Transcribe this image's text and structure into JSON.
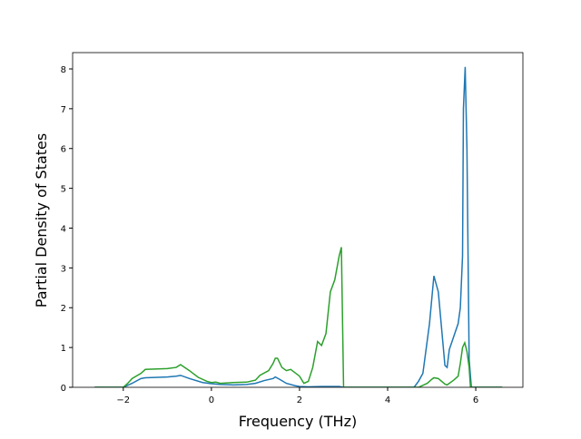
{
  "chart_data": {
    "type": "line",
    "xlabel": "Frequency (THz)",
    "ylabel": "Partial Density of States",
    "xlim": [
      -3.15,
      7.07
    ],
    "ylim": [
      0,
      8.41
    ],
    "xticks": [
      {
        "value": -2,
        "label": "−2"
      },
      0,
      2,
      4,
      6
    ],
    "yticks": [
      0,
      1,
      2,
      3,
      4,
      5,
      6,
      7,
      8
    ],
    "series": [
      {
        "color": "#1f77b4",
        "x": [
          -2.65,
          -2,
          -1.8,
          -1.6,
          -1.5,
          -1,
          -0.8,
          -0.7,
          -0.5,
          -0.2,
          0,
          0.2,
          0.5,
          0.8,
          1,
          1.2,
          1.4,
          1.45,
          1.55,
          1.7,
          1.9,
          2,
          2.2,
          2.5,
          2.9,
          3,
          4,
          4.6,
          4.7,
          4.8,
          4.95,
          5.05,
          5.15,
          5.3,
          5.35,
          5.4,
          5.6,
          5.65,
          5.7,
          5.72,
          5.76,
          5.8,
          5.85,
          5.9,
          6.6
        ],
        "values": [
          0,
          0,
          0.1,
          0.22,
          0.24,
          0.26,
          0.28,
          0.3,
          0.22,
          0.12,
          0.09,
          0.07,
          0.06,
          0.07,
          0.1,
          0.17,
          0.22,
          0.26,
          0.2,
          0.1,
          0.04,
          0.02,
          0.01,
          0.02,
          0.02,
          0,
          0,
          0,
          0.15,
          0.35,
          1.6,
          2.8,
          2.4,
          0.55,
          0.5,
          0.95,
          1.6,
          2.0,
          3.3,
          7.0,
          8.05,
          6.0,
          0.7,
          0,
          0
        ]
      },
      {
        "color": "#2ca02c",
        "x": [
          -2.65,
          -2,
          -1.9,
          -1.8,
          -1.6,
          -1.5,
          -1,
          -0.8,
          -0.7,
          -0.5,
          -0.3,
          -0.1,
          0,
          0.1,
          0.2,
          0.5,
          0.8,
          1,
          1.1,
          1.3,
          1.4,
          1.45,
          1.5,
          1.6,
          1.7,
          1.8,
          2,
          2.1,
          2.2,
          2.3,
          2.41,
          2.5,
          2.6,
          2.7,
          2.8,
          2.9,
          2.95,
          3.0,
          4,
          4.7,
          4.9,
          5.0,
          5.05,
          5.15,
          5.3,
          5.35,
          5.5,
          5.6,
          5.65,
          5.7,
          5.75,
          5.8,
          5.85,
          5.88,
          6.6
        ],
        "values": [
          0,
          0,
          0.1,
          0.22,
          0.35,
          0.45,
          0.47,
          0.5,
          0.57,
          0.42,
          0.25,
          0.15,
          0.12,
          0.13,
          0.1,
          0.12,
          0.13,
          0.18,
          0.3,
          0.42,
          0.6,
          0.73,
          0.73,
          0.5,
          0.42,
          0.45,
          0.28,
          0.1,
          0.15,
          0.5,
          1.15,
          1.05,
          1.35,
          2.4,
          2.7,
          3.3,
          3.52,
          0,
          0,
          0,
          0.1,
          0.2,
          0.24,
          0.22,
          0.08,
          0.06,
          0.18,
          0.28,
          0.6,
          1.0,
          1.12,
          0.9,
          0.5,
          0,
          0
        ]
      }
    ]
  }
}
